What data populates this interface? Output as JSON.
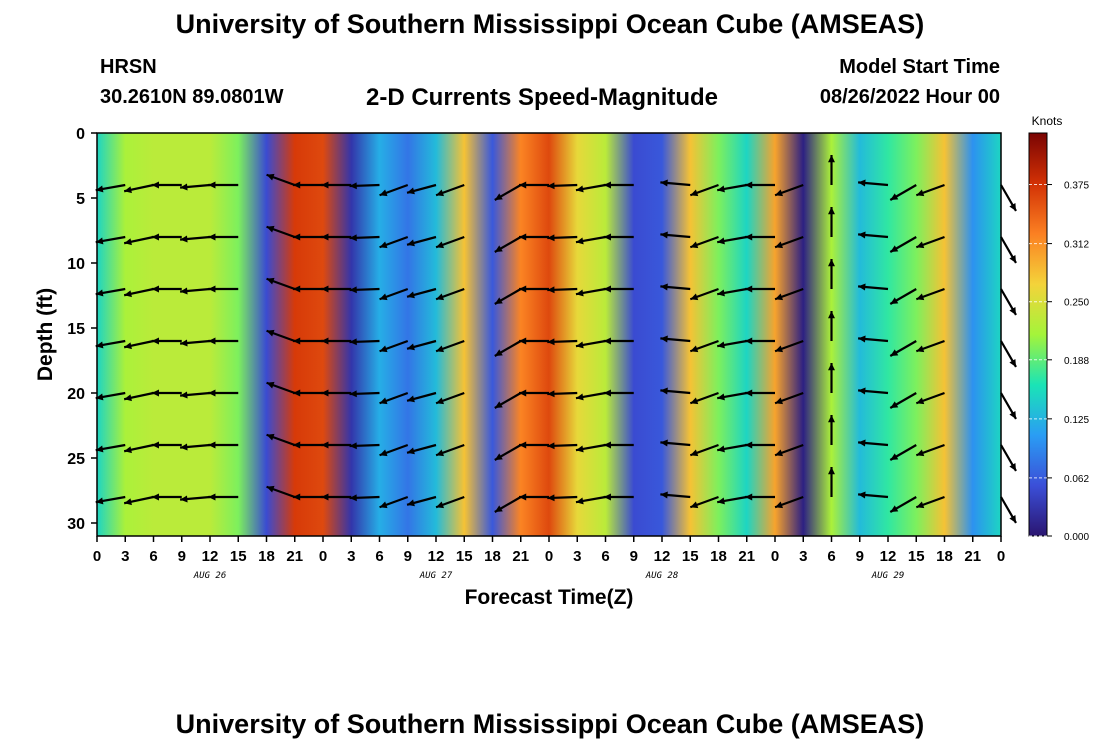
{
  "header": {
    "title": "University of Southern Mississippi Ocean Cube (AMSEAS)",
    "station": "HRSN",
    "coords": "30.2610N  89.0801W",
    "subtitle": "2-D Currents Speed-Magnitude",
    "start_label": "Model Start Time",
    "start_value": "08/26/2022 Hour 00"
  },
  "footer": {
    "title": "University of Southern Mississippi Ocean Cube (AMSEAS)"
  },
  "chart_data": {
    "type": "heatmap",
    "xlabel": "Forecast Time(Z)",
    "ylabel": "Depth (ft)",
    "xlim": [
      0,
      96
    ],
    "ylim": [
      31,
      0
    ],
    "x_ticks": [
      0,
      3,
      6,
      9,
      12,
      15,
      18,
      21,
      24,
      27,
      30,
      33,
      36,
      39,
      42,
      45,
      48,
      51,
      54,
      57,
      60,
      63,
      66,
      69,
      72,
      75,
      78,
      81,
      84,
      87,
      90,
      93,
      96
    ],
    "x_tick_labels": [
      "0",
      "3",
      "6",
      "9",
      "12",
      "15",
      "18",
      "21",
      "0",
      "3",
      "6",
      "9",
      "12",
      "15",
      "18",
      "21",
      "0",
      "3",
      "6",
      "9",
      "12",
      "15",
      "18",
      "21",
      "0",
      "3",
      "6",
      "9",
      "12",
      "15",
      "18",
      "21",
      "0"
    ],
    "day_labels": [
      {
        "text": "AUG 26",
        "hour": 12
      },
      {
        "text": "AUG 27",
        "hour": 36
      },
      {
        "text": "AUG 28",
        "hour": 60
      },
      {
        "text": "AUG 29",
        "hour": 84
      }
    ],
    "y_ticks": [
      0,
      5,
      10,
      15,
      20,
      25,
      30
    ],
    "colorbar": {
      "title": "Knots",
      "range": [
        0,
        0.43
      ],
      "ticks": [
        0.0,
        0.062,
        0.125,
        0.188,
        0.25,
        0.312,
        0.375
      ],
      "tick_labels": [
        "0.000",
        "0.062",
        "0.125",
        "0.188",
        "0.250",
        "0.312",
        "0.375"
      ],
      "colors": [
        "#2a1570",
        "#3b4fd8",
        "#2a9df4",
        "#1ae4b6",
        "#a4f43a",
        "#f4d33a",
        "#fb8022",
        "#d23105",
        "#7a0403"
      ]
    },
    "hours": [
      0,
      3,
      6,
      9,
      12,
      15,
      18,
      21,
      24,
      27,
      30,
      33,
      36,
      39,
      42,
      45,
      48,
      51,
      54,
      57,
      60,
      63,
      66,
      69,
      72,
      75,
      78,
      81,
      84,
      87,
      90,
      93,
      96
    ],
    "speed_knots": [
      0.15,
      0.22,
      0.23,
      0.23,
      0.23,
      0.2,
      0.05,
      0.37,
      0.36,
      0.03,
      0.12,
      0.08,
      0.13,
      0.28,
      0.06,
      0.32,
      0.36,
      0.26,
      0.23,
      0.05,
      0.06,
      0.28,
      0.2,
      0.15,
      0.3,
      0.01,
      0.22,
      0.13,
      0.17,
      0.2,
      0.28,
      0.1,
      0.15
    ],
    "arrow_depths": [
      4,
      8,
      12,
      16,
      20,
      24,
      28
    ],
    "arrow_hours": [
      3,
      6,
      9,
      12,
      15,
      21,
      24,
      27,
      30,
      33,
      36,
      39,
      45,
      48,
      51,
      54,
      57,
      63,
      66,
      69,
      72,
      75,
      78,
      84,
      87,
      90,
      96
    ],
    "arrow_direction_deg": [
      190,
      192,
      180,
      185,
      180,
      160,
      180,
      180,
      182,
      200,
      195,
      200,
      210,
      180,
      182,
      190,
      180,
      175,
      200,
      190,
      180,
      200,
      90,
      175,
      210,
      200,
      300
    ]
  }
}
